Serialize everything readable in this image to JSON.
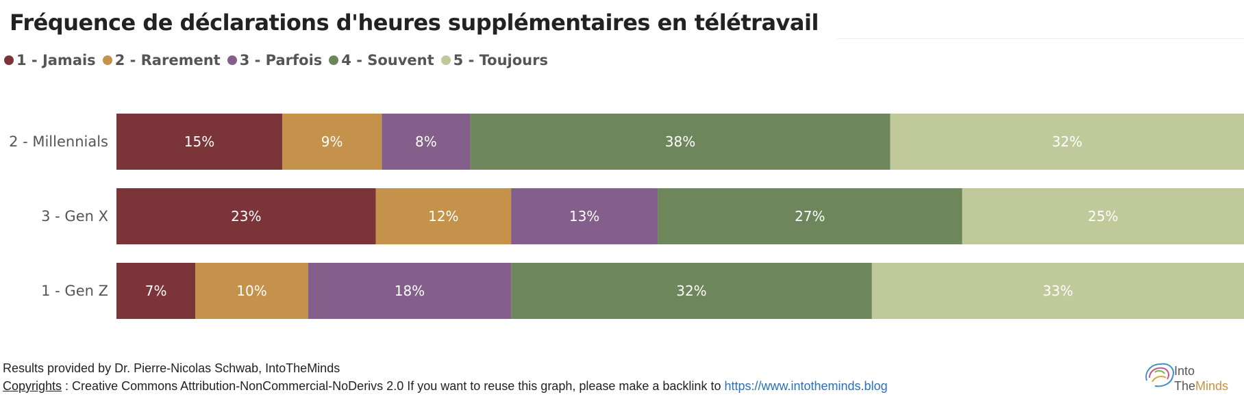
{
  "title": "Fréquence de déclarations d'heures supplémentaires en télétravail",
  "footer": {
    "credit": "Results provided by Dr. Pierre-Nicolas Schwab, IntoTheMinds",
    "copyright_label": "Copyrights",
    "copyright_text": " : Creative Commons Attribution-NonCommercial-NoDerivs 2.0 If you want to reuse this graph, please make a backlink to ",
    "link": "https://www.intotheminds.blog"
  },
  "logo": {
    "line1": "Into",
    "line2_a": "The",
    "line2_b": "Minds"
  },
  "chart_data": {
    "type": "bar",
    "orientation": "horizontal",
    "stacked": true,
    "normalized": true,
    "title": "Fréquence de déclarations d'heures supplémentaires en télétravail",
    "legend_position": "top-left",
    "categories": [
      "2 - Millennials",
      "3 - Gen X",
      "1 - Gen Z"
    ],
    "series": [
      {
        "name": "1 - Jamais",
        "color": "#7b3538",
        "values": [
          15,
          23,
          7
        ]
      },
      {
        "name": "2 - Rarement",
        "color": "#c4924b",
        "values": [
          9,
          12,
          10
        ]
      },
      {
        "name": "3 - Parfois",
        "color": "#845f8c",
        "values": [
          8,
          13,
          18
        ]
      },
      {
        "name": "4 - Souvent",
        "color": "#6e865b",
        "values": [
          38,
          27,
          32
        ]
      },
      {
        "name": "5 - Toujours",
        "color": "#c0c99a",
        "values": [
          32,
          25,
          33
        ]
      }
    ],
    "grid": false,
    "value_suffix": "%"
  }
}
